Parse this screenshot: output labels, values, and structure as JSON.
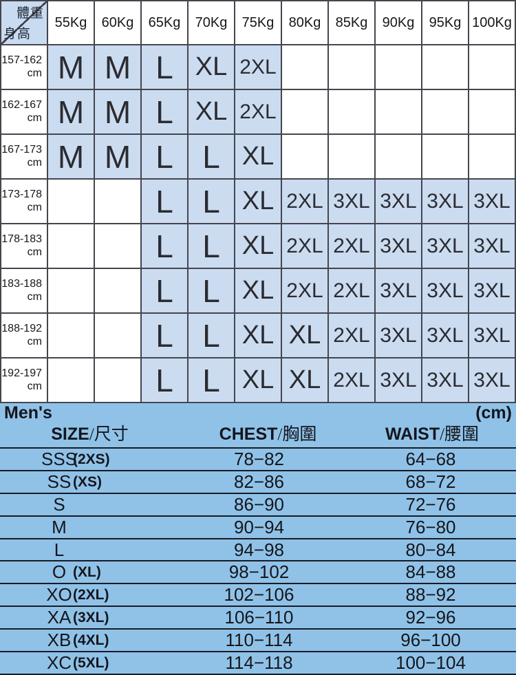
{
  "colors": {
    "grid_line": "#45454e",
    "filled_cell_blue": "#cbdcf1",
    "corner_cell_blue": "#c9dbf0",
    "mens_section_blue": "#90c2e8",
    "separator_line": "#161b24",
    "text_black": "#17171a"
  },
  "size_grid": {
    "corner": {
      "top_right": "體重",
      "bottom_left": "身高"
    },
    "weight_headers": [
      "55Kg",
      "60Kg",
      "65Kg",
      "70Kg",
      "75Kg",
      "80Kg",
      "85Kg",
      "90Kg",
      "95Kg",
      "100Kg"
    ],
    "height_unit": "cm",
    "rows": [
      {
        "height": "157-162",
        "unit": "cm",
        "cells": [
          "M",
          "M",
          "L",
          "XL",
          "2XL",
          "",
          "",
          "",
          "",
          ""
        ]
      },
      {
        "height": "162-167",
        "unit": "cm",
        "cells": [
          "M",
          "M",
          "L",
          "XL",
          "2XL",
          "",
          "",
          "",
          "",
          ""
        ]
      },
      {
        "height": "167-173",
        "unit": "cm",
        "cells": [
          "M",
          "M",
          "L",
          "L",
          "XL",
          "",
          "",
          "",
          "",
          ""
        ]
      },
      {
        "height": "173-178",
        "unit": "cm",
        "cells": [
          "",
          "",
          "L",
          "L",
          "XL",
          "2XL",
          "3XL",
          "3XL",
          "3XL",
          "3XL"
        ]
      },
      {
        "height": "178-183",
        "unit": "cm",
        "cells": [
          "",
          "",
          "L",
          "L",
          "XL",
          "2XL",
          "2XL",
          "3XL",
          "3XL",
          "3XL"
        ]
      },
      {
        "height": "183-188",
        "unit": "cm",
        "cells": [
          "",
          "",
          "L",
          "L",
          "XL",
          "2XL",
          "2XL",
          "3XL",
          "3XL",
          "3XL"
        ]
      },
      {
        "height": "188-192",
        "unit": "cm",
        "cells": [
          "",
          "",
          "L",
          "L",
          "XL",
          "XL",
          "2XL",
          "3XL",
          "3XL",
          "3XL"
        ]
      },
      {
        "height": "192-197",
        "unit": "cm",
        "cells": [
          "",
          "",
          "L",
          "L",
          "XL",
          "XL",
          "2XL",
          "3XL",
          "3XL",
          "3XL"
        ]
      }
    ]
  },
  "men_table": {
    "title": "Men's",
    "unit": "(cm)",
    "headers": [
      {
        "en": "SIZE",
        "zh": "/尺寸"
      },
      {
        "en": "CHEST",
        "zh": "/胸圍"
      },
      {
        "en": "WAIST",
        "zh": "/腰圍"
      }
    ],
    "rows": [
      {
        "size": "SSS",
        "alt": "(2XS)",
        "chest": "78−82",
        "waist": "64−68"
      },
      {
        "size": "SS",
        "alt": "(XS)",
        "chest": "82−86",
        "waist": "68−72"
      },
      {
        "size": "S",
        "alt": "",
        "chest": "86−90",
        "waist": "72−76"
      },
      {
        "size": "M",
        "alt": "",
        "chest": "90−94",
        "waist": "76−80"
      },
      {
        "size": "L",
        "alt": "",
        "chest": "94−98",
        "waist": "80−84"
      },
      {
        "size": "O",
        "alt": "(XL)",
        "chest": "98−102",
        "waist": "84−88"
      },
      {
        "size": "XO",
        "alt": "(2XL)",
        "chest": "102−106",
        "waist": "88−92"
      },
      {
        "size": "XA",
        "alt": "(3XL)",
        "chest": "106−110",
        "waist": "92−96"
      },
      {
        "size": "XB",
        "alt": "(4XL)",
        "chest": "110−114",
        "waist": "96−100"
      },
      {
        "size": "XC",
        "alt": "(5XL)",
        "chest": "114−118",
        "waist": "100−104"
      }
    ]
  }
}
